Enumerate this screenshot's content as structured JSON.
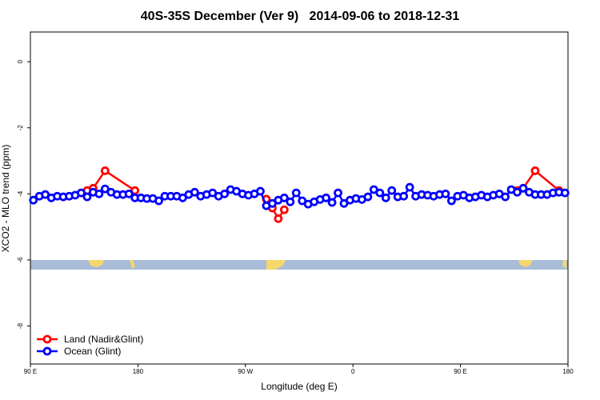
{
  "chart_data": {
    "type": "line",
    "title": "40S-35S December (Ver 9)   2014-09-06 to 2018-12-31",
    "x_label": "Longitude (deg E)",
    "y_label": "XCO2 - MLO trend (ppm)",
    "xlim": [
      90,
      540
    ],
    "ylim": [
      -9.15,
      0.9
    ],
    "xticks": [
      {
        "value": 90,
        "label": "90 E"
      },
      {
        "value": 180,
        "label": "180"
      },
      {
        "value": 270,
        "label": "90 W"
      },
      {
        "value": 360,
        "label": "0"
      },
      {
        "value": 450,
        "label": "90 E"
      },
      {
        "value": 540,
        "label": "180"
      }
    ],
    "yticks": [
      0,
      -2,
      -4,
      -6,
      -8
    ],
    "legend": "bottom-left",
    "series": [
      {
        "name": "Land (Nadir&Glint)",
        "color": "#ff0000",
        "x": [
          137.5,
          142.5,
          152.5,
          177.5,
          null,
          287.5,
          292.5,
          297.5,
          302.5,
          null,
          497.5,
          502.5,
          512.5,
          532.5
        ],
        "values": [
          -3.9,
          -3.83,
          -3.3,
          -3.9,
          null,
          -4.16,
          -4.43,
          -4.75,
          -4.48,
          null,
          -3.9,
          -3.83,
          -3.3,
          -3.9
        ]
      },
      {
        "name": "Ocean (Glint)",
        "color": "#0000ff",
        "x": [
          92.5,
          97.5,
          102.5,
          107.5,
          112.5,
          117.5,
          122.5,
          127.5,
          132.5,
          137.5,
          142.5,
          147.5,
          152.5,
          157.5,
          162.5,
          167.5,
          172.5,
          177.5,
          182.5,
          187.5,
          192.5,
          197.5,
          202.5,
          207.5,
          212.5,
          217.5,
          222.5,
          227.5,
          232.5,
          237.5,
          242.5,
          247.5,
          252.5,
          257.5,
          262.5,
          267.5,
          272.5,
          277.5,
          282.5,
          287.5,
          292.5,
          297.5,
          302.5,
          307.5,
          312.5,
          317.5,
          322.5,
          327.5,
          332.5,
          337.5,
          342.5,
          347.5,
          352.5,
          357.5,
          362.5,
          367.5,
          372.5,
          377.5,
          382.5,
          387.5,
          392.5,
          397.5,
          402.5,
          407.5,
          412.5,
          417.5,
          422.5,
          427.5,
          432.5,
          437.5,
          442.5,
          447.5,
          452.5,
          457.5,
          462.5,
          467.5,
          472.5,
          477.5,
          482.5,
          487.5,
          492.5,
          497.5,
          502.5,
          507.5,
          512.5,
          517.5,
          522.5,
          527.5,
          532.5,
          537.5
        ],
        "values": [
          -4.19,
          -4.07,
          -4.02,
          -4.12,
          -4.07,
          -4.09,
          -4.07,
          -4.04,
          -3.97,
          -4.09,
          -3.95,
          -4.0,
          -3.85,
          -3.95,
          -4.02,
          -4.02,
          -4.0,
          -4.12,
          -4.12,
          -4.14,
          -4.14,
          -4.21,
          -4.07,
          -4.07,
          -4.07,
          -4.12,
          -4.02,
          -3.95,
          -4.07,
          -4.02,
          -3.97,
          -4.07,
          -4.0,
          -3.87,
          -3.92,
          -4.0,
          -4.04,
          -4.0,
          -3.92,
          -4.36,
          -4.29,
          -4.19,
          -4.12,
          -4.24,
          -3.97,
          -4.21,
          -4.31,
          -4.24,
          -4.17,
          -4.12,
          -4.26,
          -3.97,
          -4.29,
          -4.19,
          -4.14,
          -4.17,
          -4.09,
          -3.87,
          -3.97,
          -4.12,
          -3.9,
          -4.09,
          -4.07,
          -3.8,
          -4.07,
          -4.02,
          -4.04,
          -4.07,
          -4.02,
          -4.0,
          -4.21,
          -4.07,
          -4.04,
          -4.12,
          -4.09,
          -4.04,
          -4.09,
          -4.04,
          -4.0,
          -4.09,
          -3.87,
          -3.95,
          -3.83,
          -3.95,
          -4.02,
          -4.02,
          -4.02,
          -3.97,
          -3.95,
          -3.97
        ]
      }
    ]
  }
}
